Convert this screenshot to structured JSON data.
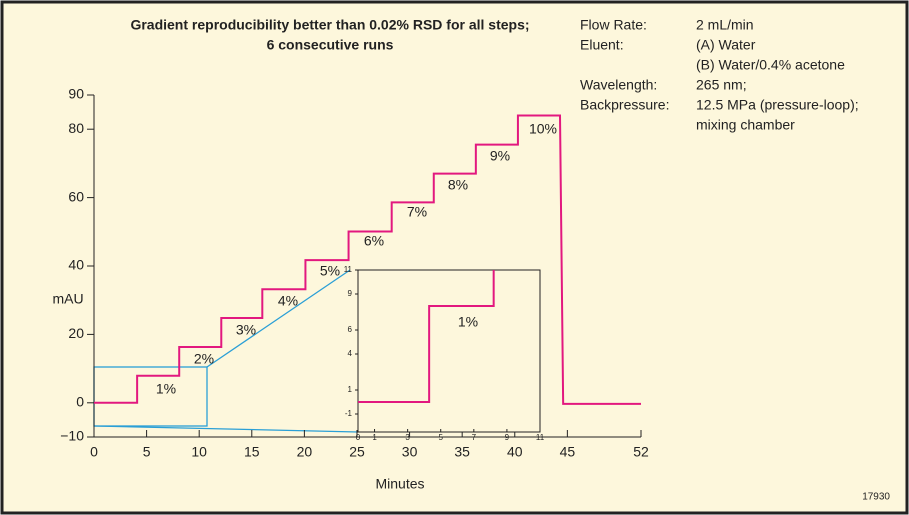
{
  "chart_data": [
    {
      "type": "line",
      "title": [
        "Gradient reproducibility better than 0.02% RSD for all steps;",
        "6 consecutive runs"
      ],
      "xlabel": "Minutes",
      "ylabel": "mAU",
      "xlim": [
        0,
        52
      ],
      "xticks": [
        0,
        5,
        10,
        15,
        20,
        25,
        30,
        35,
        40,
        45,
        52
      ],
      "ylim": [
        -10,
        90
      ],
      "yticks": [
        {
          "value": -10,
          "label": "−10"
        },
        0,
        20,
        40,
        60,
        80,
        90
      ],
      "series": [
        {
          "color": "#e2187f",
          "x": [
            0,
            4.1,
            4.1,
            8.1,
            8.1,
            12.1,
            12.1,
            16.0,
            16.0,
            20.1,
            20.1,
            24.2,
            24.2,
            28.3,
            28.3,
            32.3,
            32.3,
            36.3,
            36.3,
            40.3,
            40.3,
            44.3,
            44.6,
            52
          ],
          "values": [
            0,
            0,
            7.9,
            7.9,
            16.3,
            16.3,
            24.8,
            24.8,
            33.2,
            33.2,
            41.7,
            41.7,
            50.1,
            50.1,
            58.6,
            58.6,
            67,
            67,
            75.5,
            75.5,
            84,
            84,
            -0.3,
            -0.3
          ]
        }
      ],
      "annotations": [
        "1%",
        "2%",
        "3%",
        "4%",
        "5%",
        "6%",
        "7%",
        "8%",
        "9%",
        "10%"
      ],
      "info": [
        {
          "label": "Flow Rate:",
          "lines": [
            "2 mL/min"
          ]
        },
        {
          "label": "Eluent:",
          "lines": [
            "(A) Water",
            "(B) Water/0.4% acetone"
          ]
        },
        {
          "label": "Wavelength:",
          "lines": [
            "265 nm;"
          ]
        },
        {
          "label": "Backpressure:",
          "lines": [
            "12.5 MPa (pressure-loop);",
            "mixing chamber"
          ]
        }
      ],
      "figure_number": "17930"
    },
    {
      "type": "line",
      "xlim": [
        0,
        11
      ],
      "xticks": [
        0,
        1,
        3,
        5,
        7,
        9,
        11
      ],
      "ylim": [
        -2.5,
        11
      ],
      "yticks": [
        -1,
        1,
        4,
        6,
        9,
        11
      ],
      "series": [
        {
          "color": "#e2187f",
          "x": [
            0,
            4.3,
            4.3,
            8.2,
            8.2
          ],
          "values": [
            0,
            0,
            8,
            8,
            11
          ]
        }
      ],
      "annotations": [
        "1%"
      ]
    }
  ]
}
